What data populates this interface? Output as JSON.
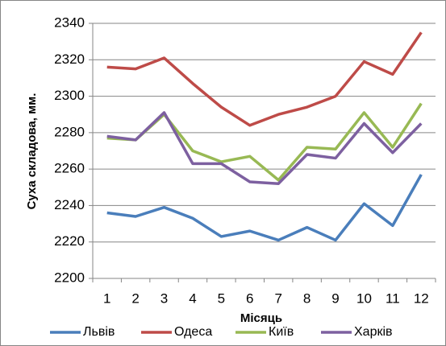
{
  "chart_data": {
    "type": "line",
    "x_label": "Місяць",
    "y_label": "Суха складова, мм.",
    "categories": [
      "1",
      "2",
      "3",
      "4",
      "5",
      "6",
      "7",
      "8",
      "9",
      "10",
      "11",
      "12"
    ],
    "series": [
      {
        "name": "Львів",
        "color": "#4a7ebb",
        "values": [
          2236,
          2234,
          2239,
          2233,
          2223,
          2226,
          2221,
          2228,
          2221,
          2241,
          2229,
          2257
        ]
      },
      {
        "name": "Одеса",
        "color": "#be4b48",
        "values": [
          2316,
          2315,
          2321,
          2307,
          2294,
          2284,
          2290,
          2294,
          2300,
          2319,
          2312,
          2335
        ]
      },
      {
        "name": "Київ",
        "color": "#98b954",
        "values": [
          2277,
          2276,
          2290,
          2270,
          2264,
          2267,
          2254,
          2272,
          2271,
          2291,
          2272,
          2296
        ]
      },
      {
        "name": "Харків",
        "color": "#7d60a0",
        "values": [
          2278,
          2276,
          2291,
          2263,
          2263,
          2253,
          2252,
          2268,
          2266,
          2285,
          2269,
          2285
        ]
      }
    ],
    "ylim": [
      2200,
      2340
    ],
    "yticks": [
      2200,
      2220,
      2240,
      2260,
      2280,
      2300,
      2320,
      2340
    ],
    "grid": true,
    "legend": "bottom"
  }
}
